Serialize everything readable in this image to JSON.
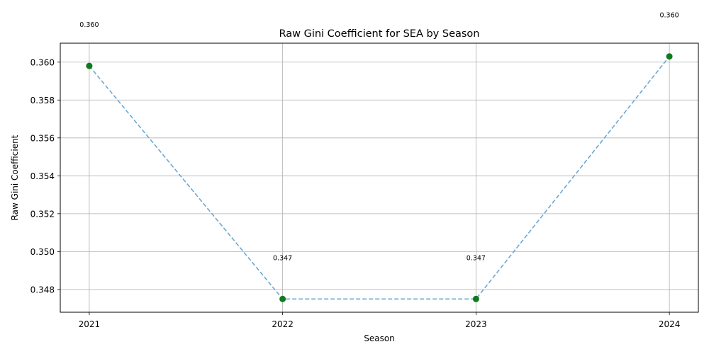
{
  "chart_data": {
    "type": "line",
    "title": "Raw Gini Coefficient for SEA by Season",
    "xlabel": "Season",
    "ylabel": "Raw Gini Coefficient",
    "categories": [
      "2021",
      "2022",
      "2023",
      "2024"
    ],
    "series": [
      {
        "values": [
          0.3598,
          0.3475,
          0.3475,
          0.3603
        ],
        "data_labels": [
          "0.360",
          "0.347",
          "0.347",
          "0.360"
        ],
        "line_color": "#6fa8d0",
        "line_style": "dashed",
        "marker_color": "#107a1e"
      }
    ],
    "ylim": [
      0.3468,
      0.361
    ],
    "yticks": [
      0.348,
      0.35,
      0.352,
      0.354,
      0.356,
      0.358,
      0.36
    ],
    "ytick_labels": [
      "0.348",
      "0.350",
      "0.352",
      "0.354",
      "0.356",
      "0.358",
      "0.360"
    ],
    "grid": true,
    "legend": "none"
  }
}
